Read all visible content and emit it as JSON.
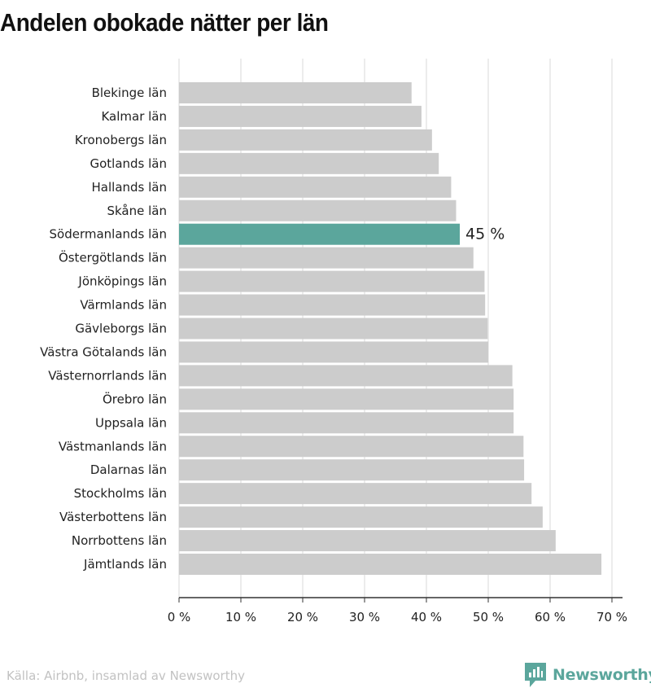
{
  "header": {
    "title": "Andelen obokade nätter per län"
  },
  "footer": {
    "source": "Källa: Airbnb, insamlad av Newsworthy",
    "brand": "Newsworthy"
  },
  "colors": {
    "bar": "#cccccc",
    "highlight": "#5ba69c",
    "grid": "#d9d9d9",
    "axis": "#333333",
    "text": "#222222"
  },
  "icons": {
    "brand_logo": "newsworthy-logo-icon"
  },
  "chart_data": {
    "type": "bar",
    "orientation": "horizontal",
    "title": "Andelen obokade nätter per län",
    "xlabel": "",
    "ylabel": "",
    "unit": "%",
    "xlim": [
      0,
      70
    ],
    "xticks": [
      0,
      10,
      20,
      30,
      40,
      50,
      60,
      70
    ],
    "xtick_labels": [
      "0 %",
      "10 %",
      "20 %",
      "30 %",
      "40 %",
      "50 %",
      "60 %",
      "70 %"
    ],
    "grid": true,
    "highlight": {
      "category": "Södermanlands län",
      "label": "45 %"
    },
    "categories": [
      "Blekinge län",
      "Kalmar län",
      "Kronobergs län",
      "Gotlands län",
      "Hallands län",
      "Skåne län",
      "Södermanlands län",
      "Östergötlands län",
      "Jönköpings län",
      "Värmlands län",
      "Gävleborgs län",
      "Västra Götalands län",
      "Västernorrlands län",
      "Örebro län",
      "Uppsala län",
      "Västmanlands län",
      "Dalarnas län",
      "Stockholms län",
      "Västerbottens län",
      "Norrbottens län",
      "Jämtlands län"
    ],
    "values": [
      37.6,
      39.2,
      40.9,
      42.0,
      44.0,
      44.8,
      45.4,
      47.6,
      49.4,
      49.5,
      49.9,
      50.0,
      53.9,
      54.1,
      54.1,
      55.7,
      55.8,
      57.0,
      58.8,
      60.9,
      68.3
    ]
  }
}
